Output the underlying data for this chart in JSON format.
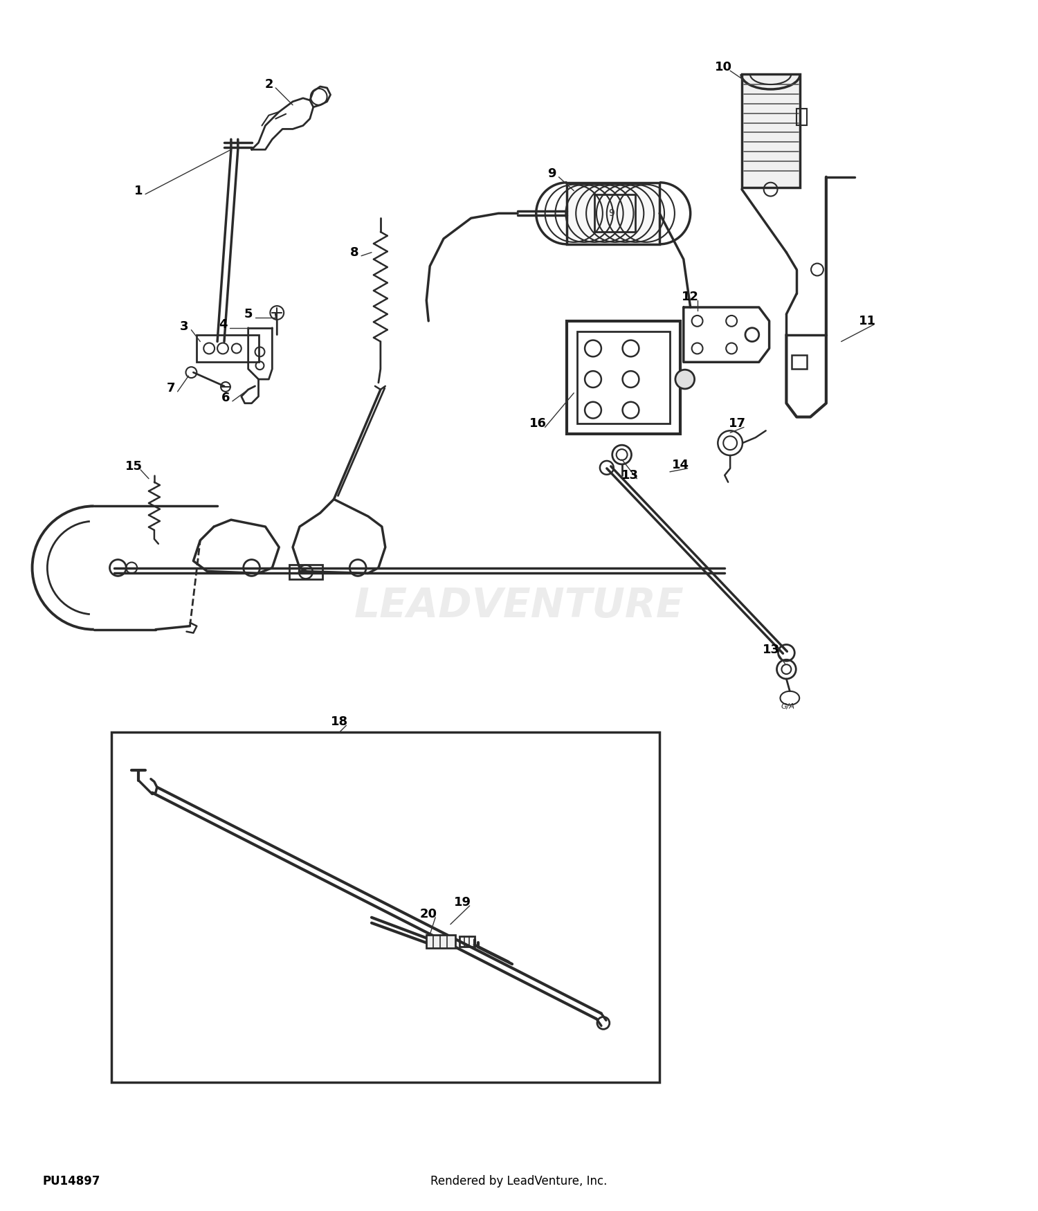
{
  "background_color": "#ffffff",
  "fig_width": 15.0,
  "fig_height": 17.5,
  "dpi": 100,
  "part_id": "PU14897",
  "footer_text": "Rendered by LeadVenture, Inc.",
  "watermark_text": "LEADVENTURE",
  "watermark_color": "#d0d0d0",
  "line_color": "#2a2a2a",
  "label_color": "#000000",
  "label_fontsize": 13,
  "footer_fontsize": 12,
  "part_id_fontsize": 12
}
